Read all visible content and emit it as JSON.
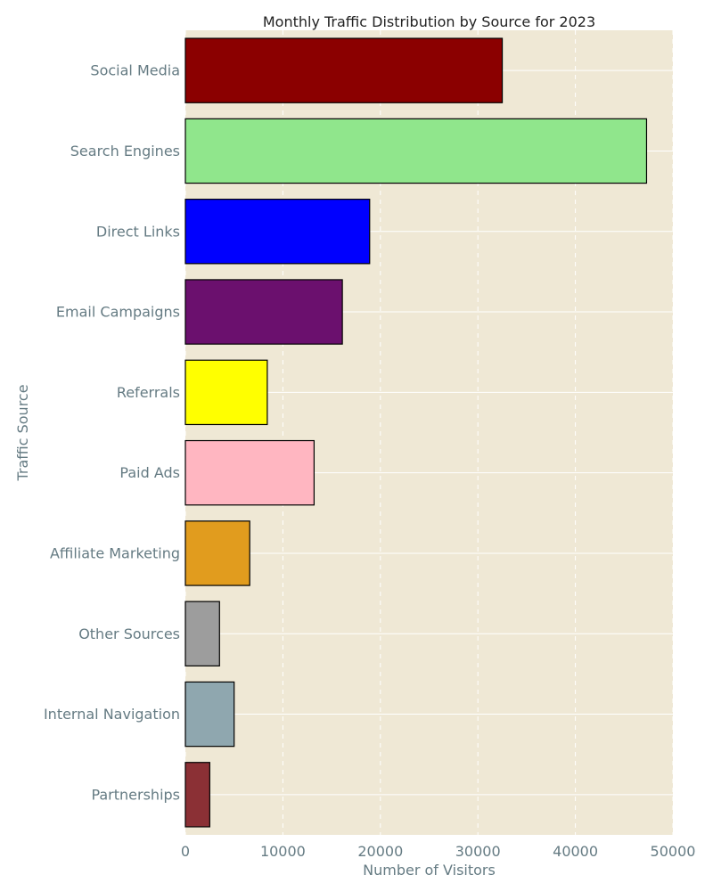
{
  "chart_data": {
    "type": "bar",
    "orientation": "horizontal",
    "title": "Monthly Traffic Distribution by Source for 2023",
    "xlabel": "Number of Visitors",
    "ylabel": "Traffic Source",
    "categories": [
      "Social Media",
      "Search Engines",
      "Direct Links",
      "Email Campaigns",
      "Referrals",
      "Paid Ads",
      "Affiliate Marketing",
      "Other Sources",
      "Internal Navigation",
      "Partnerships"
    ],
    "values": [
      32500,
      47300,
      18900,
      16100,
      8400,
      13200,
      6600,
      3500,
      5000,
      2500
    ],
    "colors": [
      "#8b0000",
      "#90e68c",
      "#0000ff",
      "#6b106e",
      "#ffff00",
      "#ffb6c1",
      "#e19c1e",
      "#9d9d9d",
      "#8fa7af",
      "#8b3035"
    ],
    "xlim": [
      0,
      50000
    ],
    "xticks": [
      0,
      10000,
      20000,
      30000,
      40000,
      50000
    ],
    "xtick_labels": [
      "0",
      "10000",
      "20000",
      "30000",
      "40000",
      "50000"
    ],
    "grid": true,
    "plot_background": "#efe8d5",
    "grid_color": "#ffffff",
    "text_color": "#657b83"
  }
}
